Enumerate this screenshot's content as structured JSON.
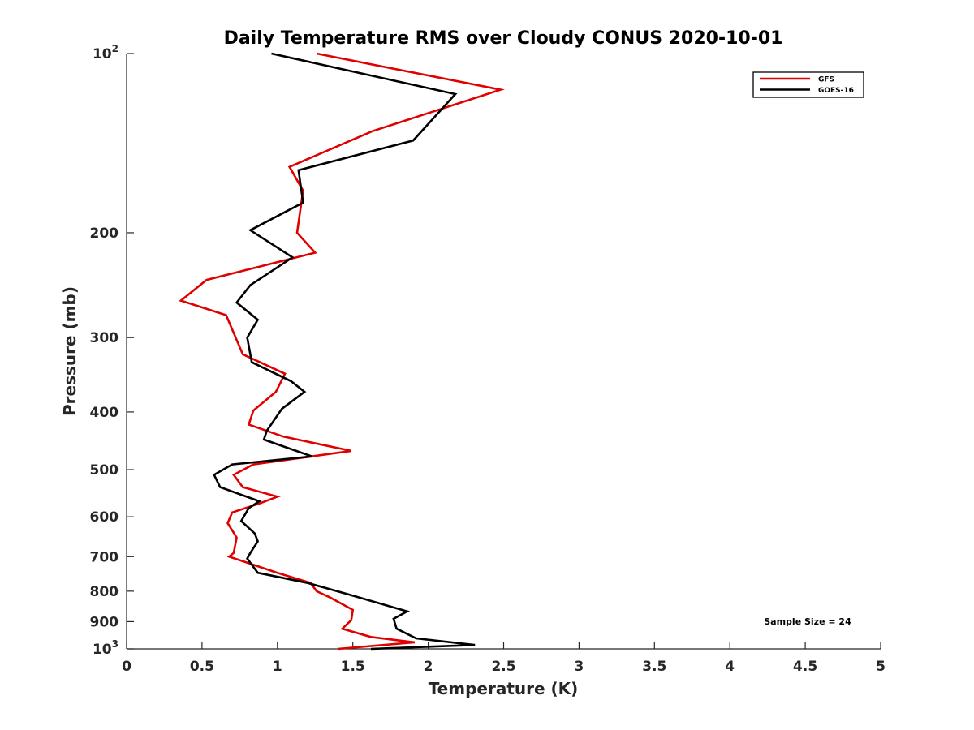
{
  "chart_data": {
    "type": "line",
    "title": "Daily Temperature RMS over Cloudy CONUS 2020-10-01",
    "xlabel": "Temperature (K)",
    "ylabel": "Pressure (mb)",
    "xlim": [
      0,
      5
    ],
    "ylim": [
      100,
      1000
    ],
    "y_scale": "log",
    "y_reversed": true,
    "x_ticks": [
      "0",
      "0.5",
      "1",
      "1.5",
      "2",
      "2.5",
      "3",
      "3.5",
      "4",
      "4.5",
      "5"
    ],
    "x_tick_values": [
      0,
      0.5,
      1,
      1.5,
      2,
      2.5,
      3,
      3.5,
      4,
      4.5,
      5
    ],
    "y_ticks": [
      {
        "value": 100,
        "base": "10",
        "exp": "2"
      },
      {
        "value": 200,
        "label": "200"
      },
      {
        "value": 300,
        "label": "300"
      },
      {
        "value": 400,
        "label": "400"
      },
      {
        "value": 500,
        "label": "500"
      },
      {
        "value": 600,
        "label": "600"
      },
      {
        "value": 700,
        "label": "700"
      },
      {
        "value": 800,
        "label": "800"
      },
      {
        "value": 900,
        "label": "900"
      },
      {
        "value": 1000,
        "base": "10",
        "exp": "3"
      }
    ],
    "grid": false,
    "legend_position": "top-right",
    "annotation": "Sample Size = 24",
    "series": [
      {
        "name": "GFS",
        "color": "#e00000",
        "points": [
          [
            1.26,
            100
          ],
          [
            2.48,
            115
          ],
          [
            1.63,
            135
          ],
          [
            1.08,
            155
          ],
          [
            1.17,
            170
          ],
          [
            1.13,
            200
          ],
          [
            1.25,
            216
          ],
          [
            0.53,
            240
          ],
          [
            0.36,
            260
          ],
          [
            0.66,
            275
          ],
          [
            0.77,
            320
          ],
          [
            1.05,
            345
          ],
          [
            0.99,
            370
          ],
          [
            0.84,
            398
          ],
          [
            0.81,
            420
          ],
          [
            1.04,
            440
          ],
          [
            1.49,
            465
          ],
          [
            0.84,
            490
          ],
          [
            0.71,
            510
          ],
          [
            0.77,
            535
          ],
          [
            1.0,
            555
          ],
          [
            0.88,
            570
          ],
          [
            0.7,
            590
          ],
          [
            0.67,
            615
          ],
          [
            0.73,
            650
          ],
          [
            0.71,
            690
          ],
          [
            0.68,
            700
          ],
          [
            0.79,
            715
          ],
          [
            1.0,
            745
          ],
          [
            1.22,
            775
          ],
          [
            1.26,
            800
          ],
          [
            1.35,
            820
          ],
          [
            1.5,
            860
          ],
          [
            1.49,
            895
          ],
          [
            1.43,
            925
          ],
          [
            1.62,
            955
          ],
          [
            1.91,
            975
          ],
          [
            1.4,
            1000
          ]
        ]
      },
      {
        "name": "GOES-16",
        "color": "#000000",
        "points": [
          [
            0.96,
            100
          ],
          [
            2.18,
            117
          ],
          [
            1.9,
            140
          ],
          [
            1.14,
            157
          ],
          [
            1.17,
            178
          ],
          [
            0.82,
            198
          ],
          [
            1.1,
            220
          ],
          [
            0.82,
            245
          ],
          [
            0.73,
            262
          ],
          [
            0.87,
            280
          ],
          [
            0.8,
            300
          ],
          [
            0.83,
            330
          ],
          [
            1.09,
            355
          ],
          [
            1.18,
            370
          ],
          [
            1.03,
            395
          ],
          [
            0.93,
            430
          ],
          [
            0.91,
            445
          ],
          [
            1.23,
            475
          ],
          [
            0.7,
            490
          ],
          [
            0.58,
            510
          ],
          [
            0.62,
            535
          ],
          [
            0.88,
            565
          ],
          [
            0.81,
            580
          ],
          [
            0.76,
            610
          ],
          [
            0.85,
            640
          ],
          [
            0.87,
            660
          ],
          [
            0.82,
            690
          ],
          [
            0.8,
            705
          ],
          [
            0.87,
            745
          ],
          [
            1.2,
            775
          ],
          [
            1.47,
            810
          ],
          [
            1.86,
            865
          ],
          [
            1.77,
            890
          ],
          [
            1.79,
            925
          ],
          [
            1.92,
            960
          ],
          [
            2.31,
            985
          ],
          [
            1.62,
            1000
          ]
        ]
      }
    ]
  }
}
